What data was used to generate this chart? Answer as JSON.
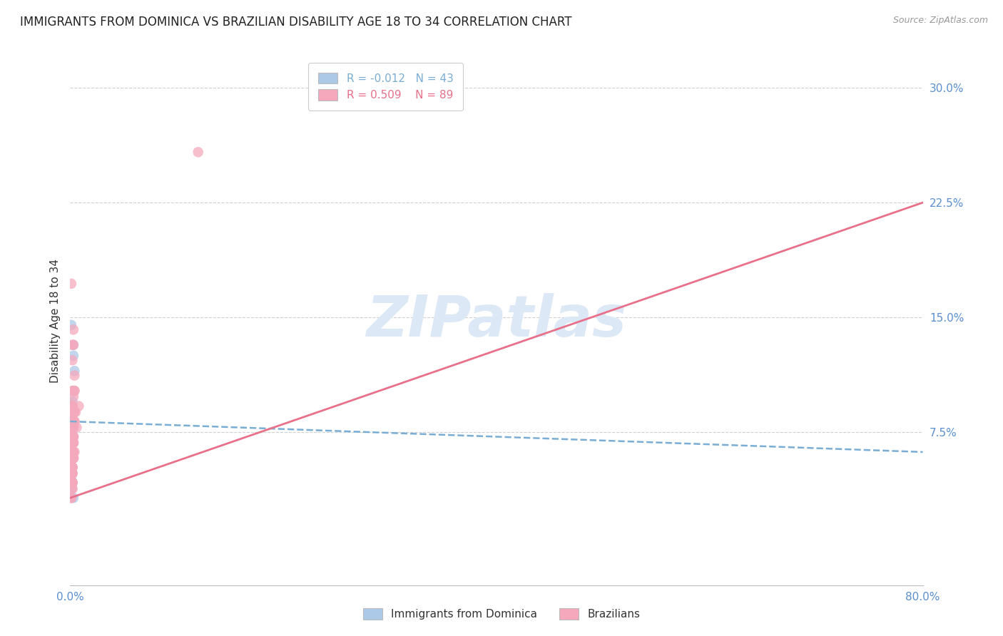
{
  "title": "IMMIGRANTS FROM DOMINICA VS BRAZILIAN DISABILITY AGE 18 TO 34 CORRELATION CHART",
  "source": "Source: ZipAtlas.com",
  "ylabel": "Disability Age 18 to 34",
  "xlim": [
    0.0,
    0.8
  ],
  "ylim": [
    -0.025,
    0.32
  ],
  "yticks": [
    0.075,
    0.15,
    0.225,
    0.3
  ],
  "ytick_labels": [
    "7.5%",
    "15.0%",
    "22.5%",
    "30.0%"
  ],
  "xticks": [
    0.0,
    0.1,
    0.2,
    0.3,
    0.4,
    0.5,
    0.6,
    0.7,
    0.8
  ],
  "xtick_labels": [
    "0.0%",
    "",
    "",
    "",
    "",
    "",
    "",
    "",
    "80.0%"
  ],
  "blue_R": -0.012,
  "blue_N": 43,
  "pink_R": 0.509,
  "pink_N": 89,
  "blue_color": "#adc9e8",
  "pink_color": "#f5a8bc",
  "blue_line_color": "#7aadd4",
  "pink_line_color": "#e8708a",
  "axis_label_color": "#5b8fcf",
  "grid_color": "#d0d0d0",
  "background_color": "#ffffff",
  "watermark": "ZIPatlas",
  "watermark_color": "#dce8f5",
  "title_fontsize": 12,
  "axis_fontsize": 11,
  "tick_fontsize": 11,
  "legend_fontsize": 11,
  "blue_line_x0": 0.0,
  "blue_line_y0": 0.082,
  "blue_line_x1": 0.8,
  "blue_line_y1": 0.062,
  "pink_line_x0": 0.0,
  "pink_line_y0": 0.032,
  "pink_line_x1": 0.8,
  "pink_line_y1": 0.225,
  "blue_scatter_x": [
    0.001,
    0.002,
    0.001,
    0.003,
    0.001,
    0.004,
    0.002,
    0.003,
    0.001,
    0.002,
    0.001,
    0.002,
    0.001,
    0.003,
    0.001,
    0.002,
    0.001,
    0.001,
    0.003,
    0.002,
    0.001,
    0.001,
    0.003,
    0.002,
    0.001,
    0.002,
    0.002,
    0.001,
    0.001,
    0.003,
    0.002,
    0.001,
    0.002,
    0.002,
    0.001,
    0.003,
    0.001,
    0.002,
    0.001,
    0.002,
    0.002,
    0.001,
    0.003
  ],
  "blue_scatter_y": [
    0.145,
    0.095,
    0.085,
    0.125,
    0.075,
    0.115,
    0.082,
    0.102,
    0.065,
    0.092,
    0.072,
    0.082,
    0.068,
    0.072,
    0.088,
    0.072,
    0.078,
    0.068,
    0.082,
    0.072,
    0.062,
    0.078,
    0.088,
    0.068,
    0.072,
    0.082,
    0.078,
    0.062,
    0.052,
    0.072,
    0.042,
    0.048,
    0.062,
    0.058,
    0.052,
    0.132,
    0.078,
    0.042,
    0.044,
    0.068,
    0.06,
    0.038,
    0.032
  ],
  "pink_scatter_x": [
    0.002,
    0.001,
    0.003,
    0.004,
    0.002,
    0.002,
    0.003,
    0.002,
    0.001,
    0.002,
    0.003,
    0.002,
    0.004,
    0.002,
    0.001,
    0.002,
    0.002,
    0.003,
    0.002,
    0.002,
    0.003,
    0.001,
    0.002,
    0.002,
    0.004,
    0.002,
    0.002,
    0.003,
    0.002,
    0.001,
    0.002,
    0.005,
    0.003,
    0.002,
    0.001,
    0.004,
    0.002,
    0.002,
    0.003,
    0.002,
    0.001,
    0.002,
    0.006,
    0.003,
    0.002,
    0.001,
    0.004,
    0.002,
    0.002,
    0.003,
    0.002,
    0.002,
    0.003,
    0.001,
    0.12,
    0.002,
    0.002,
    0.003,
    0.002,
    0.002,
    0.003,
    0.001,
    0.002,
    0.004,
    0.002,
    0.002,
    0.003,
    0.002,
    0.008,
    0.003,
    0.002,
    0.002,
    0.003,
    0.001,
    0.002,
    0.002,
    0.003,
    0.002,
    0.002,
    0.004,
    0.002,
    0.001,
    0.002,
    0.003,
    0.002,
    0.002,
    0.003,
    0.002,
    0.001
  ],
  "pink_scatter_y": [
    0.132,
    0.172,
    0.142,
    0.112,
    0.092,
    0.102,
    0.088,
    0.122,
    0.092,
    0.082,
    0.132,
    0.092,
    0.102,
    0.082,
    0.072,
    0.092,
    0.088,
    0.078,
    0.072,
    0.082,
    0.098,
    0.068,
    0.082,
    0.092,
    0.102,
    0.078,
    0.072,
    0.088,
    0.068,
    0.062,
    0.078,
    0.088,
    0.078,
    0.068,
    0.058,
    0.082,
    0.072,
    0.062,
    0.072,
    0.058,
    0.052,
    0.068,
    0.078,
    0.068,
    0.058,
    0.048,
    0.062,
    0.052,
    0.042,
    0.058,
    0.048,
    0.038,
    0.058,
    0.042,
    0.258,
    0.058,
    0.062,
    0.072,
    0.052,
    0.058,
    0.068,
    0.048,
    0.052,
    0.088,
    0.058,
    0.042,
    0.068,
    0.042,
    0.092,
    0.058,
    0.042,
    0.058,
    0.068,
    0.042,
    0.058,
    0.048,
    0.062,
    0.048,
    0.052,
    0.082,
    0.042,
    0.032,
    0.052,
    0.062,
    0.038,
    0.048,
    0.058,
    0.042,
    0.032
  ]
}
